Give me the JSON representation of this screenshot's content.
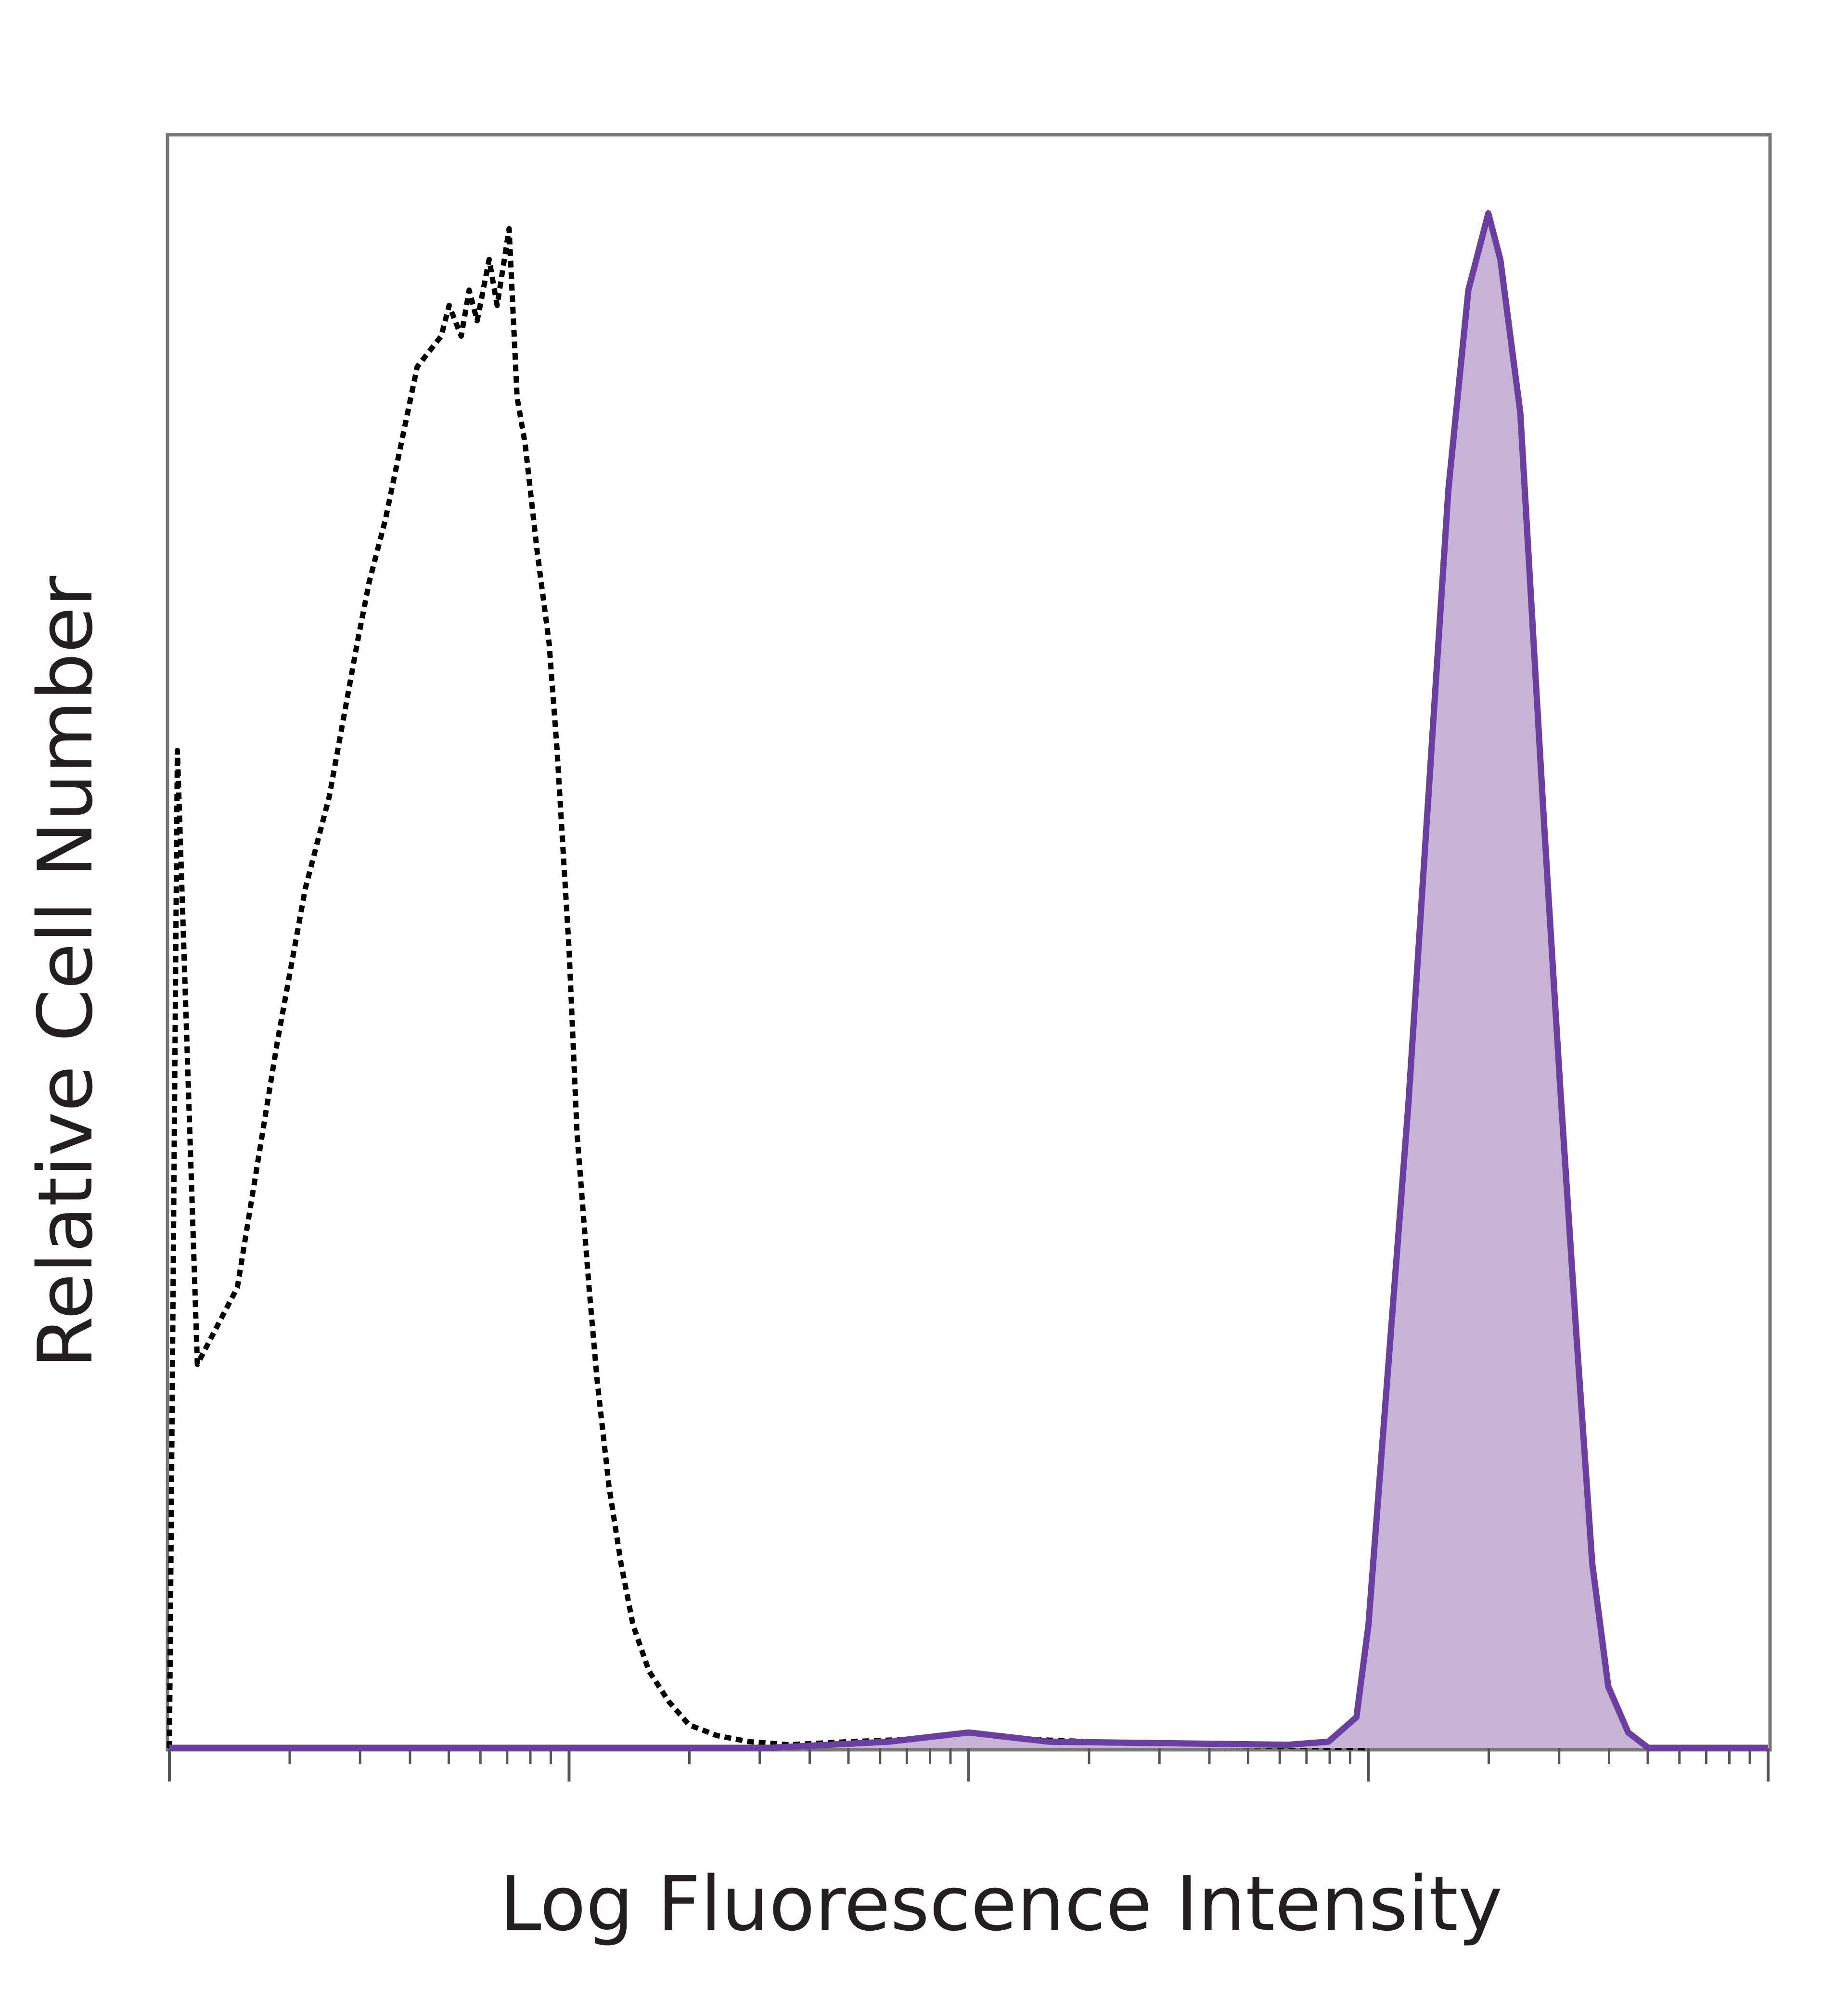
{
  "chart_data": {
    "type": "area",
    "xlabel": "Log Fluorescence Intensity",
    "ylabel": "Relative Cell Number",
    "xscale": "log",
    "xlim": [
      0,
      4
    ],
    "ylim": [
      0,
      1.05
    ],
    "grid": false,
    "tick_labels_shown": false,
    "decades": [
      0,
      1,
      2,
      3,
      4
    ],
    "series": [
      {
        "style": "dotted-outline",
        "color": "#000000",
        "x": [
          0.0,
          0.02,
          0.07,
          0.17,
          0.27,
          0.34,
          0.4,
          0.47,
          0.5,
          0.54,
          0.58,
          0.62,
          0.65,
          0.68,
          0.7,
          0.73,
          0.75,
          0.77,
          0.8,
          0.82,
          0.85,
          0.87,
          0.89,
          0.92,
          0.95,
          0.97,
          1.0,
          1.02,
          1.05,
          1.07,
          1.1,
          1.13,
          1.16,
          1.2,
          1.25,
          1.3,
          1.37,
          1.45,
          1.55,
          1.7,
          1.9,
          2.0,
          2.1,
          2.3,
          2.5,
          2.8,
          3.0
        ],
        "y": [
          0.0,
          0.65,
          0.25,
          0.3,
          0.46,
          0.56,
          0.62,
          0.72,
          0.76,
          0.8,
          0.85,
          0.9,
          0.91,
          0.92,
          0.94,
          0.92,
          0.95,
          0.93,
          0.97,
          0.94,
          0.99,
          0.88,
          0.85,
          0.78,
          0.72,
          0.65,
          0.52,
          0.4,
          0.3,
          0.24,
          0.17,
          0.12,
          0.08,
          0.05,
          0.03,
          0.015,
          0.008,
          0.004,
          0.002,
          0.004,
          0.006,
          0.01,
          0.006,
          0.004,
          0.002,
          0.001,
          0.0
        ]
      },
      {
        "style": "filled",
        "color": "#6a3fa0",
        "fill": "#c7b3d6",
        "x": [
          0.0,
          0.5,
          1.0,
          1.5,
          1.8,
          2.0,
          2.2,
          2.8,
          2.9,
          2.97,
          3.0,
          3.05,
          3.1,
          3.15,
          3.2,
          3.25,
          3.3,
          3.33,
          3.35,
          3.38,
          3.4,
          3.44,
          3.48,
          3.52,
          3.56,
          3.6,
          3.65,
          3.7,
          3.75,
          3.8,
          3.9,
          4.0
        ],
        "y": [
          0.0,
          0.0,
          0.0,
          0.0,
          0.004,
          0.01,
          0.004,
          0.002,
          0.004,
          0.02,
          0.08,
          0.25,
          0.42,
          0.62,
          0.82,
          0.95,
          1.0,
          0.97,
          0.93,
          0.87,
          0.78,
          0.6,
          0.43,
          0.27,
          0.12,
          0.04,
          0.01,
          0.0,
          0.0,
          0.0,
          0.0,
          0.0
        ]
      }
    ]
  }
}
